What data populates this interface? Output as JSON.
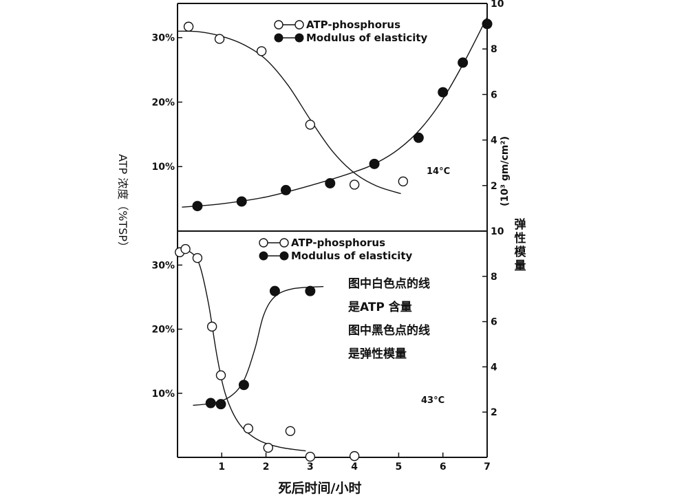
{
  "chart_data": [
    {
      "type": "scatter",
      "panel": "top",
      "temperature_label": "14°C",
      "x_ticks": [],
      "xlim": [
        0,
        7
      ],
      "y_left": {
        "ticks": [
          "10%",
          "20%",
          "30%"
        ],
        "tick_values": [
          10,
          20,
          30
        ],
        "lim": [
          0,
          35.3
        ]
      },
      "y_right": {
        "ticks": [
          "2",
          "4",
          "6",
          "8",
          "10"
        ],
        "tick_values": [
          2,
          4,
          6,
          8,
          10
        ],
        "lim": [
          0,
          10
        ],
        "label": "(10³ gm/cm²)"
      },
      "legend": [
        "ATP-phosphorus",
        "Modulus of elasticity"
      ],
      "series": [
        {
          "name": "ATP-phosphorus",
          "marker": "open-circle",
          "axis": "left",
          "points": [
            [
              0.25,
              31.7
            ],
            [
              0.95,
              29.8
            ],
            [
              1.9,
              27.9
            ],
            [
              3.0,
              16.5
            ],
            [
              4.0,
              7.2
            ],
            [
              5.1,
              7.7
            ]
          ],
          "curve": [
            [
              0,
              31.0
            ],
            [
              0.5,
              30.9
            ],
            [
              1.0,
              30.2
            ],
            [
              1.5,
              28.9
            ],
            [
              2.0,
              26.6
            ],
            [
              2.5,
              22.6
            ],
            [
              3.0,
              17.3
            ],
            [
              3.5,
              12.4
            ],
            [
              4.0,
              9.0
            ],
            [
              4.5,
              7.0
            ],
            [
              5.05,
              5.8
            ]
          ]
        },
        {
          "name": "Modulus of elasticity",
          "marker": "filled-circle",
          "axis": "right",
          "points": [
            [
              0.45,
              1.1
            ],
            [
              1.45,
              1.3
            ],
            [
              2.45,
              1.8
            ],
            [
              3.45,
              2.1
            ],
            [
              4.45,
              2.95
            ],
            [
              5.45,
              4.1
            ],
            [
              6.0,
              6.1
            ],
            [
              6.45,
              7.4
            ],
            [
              7.0,
              9.1
            ]
          ],
          "curve": [
            [
              0.1,
              1.05
            ],
            [
              1.0,
              1.2
            ],
            [
              2.0,
              1.5
            ],
            [
              3.0,
              2.0
            ],
            [
              4.0,
              2.6
            ],
            [
              4.5,
              3.0
            ],
            [
              5.0,
              3.6
            ],
            [
              5.5,
              4.5
            ],
            [
              6.0,
              5.8
            ],
            [
              6.5,
              7.5
            ],
            [
              7.0,
              9.4
            ]
          ]
        }
      ]
    },
    {
      "type": "scatter",
      "panel": "bottom",
      "temperature_label": "43°C",
      "x_ticks": [
        "1",
        "2",
        "3",
        "4",
        "5",
        "6",
        "7"
      ],
      "x_tick_values": [
        1,
        2,
        3,
        4,
        5,
        6,
        7
      ],
      "xlim": [
        0,
        7
      ],
      "xlabel": "死后时间/小时",
      "y_left": {
        "ticks": [
          "10%",
          "20%",
          "30%"
        ],
        "tick_values": [
          10,
          20,
          30
        ],
        "lim": [
          0,
          35.3
        ]
      },
      "y_right": {
        "ticks": [
          "2",
          "4",
          "6",
          "8",
          "10"
        ],
        "tick_values": [
          2,
          4,
          6,
          8,
          10
        ],
        "lim": [
          0,
          10
        ]
      },
      "legend": [
        "ATP-phosphorus",
        "Modulus of elasticity"
      ],
      "series": [
        {
          "name": "ATP-phosphorus",
          "marker": "open-circle",
          "axis": "left",
          "points": [
            [
              0.05,
              32.0
            ],
            [
              0.18,
              32.5
            ],
            [
              0.45,
              31.1
            ],
            [
              0.78,
              20.4
            ],
            [
              0.98,
              12.8
            ],
            [
              1.6,
              4.5
            ],
            [
              2.05,
              1.5
            ],
            [
              2.55,
              4.1
            ],
            [
              3.0,
              0.1
            ],
            [
              4.0,
              0.2
            ]
          ],
          "curve": [
            [
              0.05,
              32.3
            ],
            [
              0.3,
              32.0
            ],
            [
              0.5,
              30.0
            ],
            [
              0.7,
              24.0
            ],
            [
              0.9,
              15.5
            ],
            [
              1.1,
              9.5
            ],
            [
              1.4,
              5.2
            ],
            [
              1.8,
              2.8
            ],
            [
              2.3,
              1.6
            ],
            [
              2.9,
              1.0
            ]
          ]
        },
        {
          "name": "Modulus of elasticity",
          "marker": "filled-circle",
          "axis": "right",
          "points": [
            [
              0.75,
              2.4
            ],
            [
              0.98,
              2.35
            ],
            [
              1.5,
              3.2
            ],
            [
              2.2,
              7.35
            ],
            [
              3.0,
              7.35
            ]
          ],
          "curve": [
            [
              0.35,
              2.3
            ],
            [
              0.8,
              2.4
            ],
            [
              1.2,
              2.7
            ],
            [
              1.5,
              3.4
            ],
            [
              1.75,
              4.8
            ],
            [
              1.95,
              6.3
            ],
            [
              2.2,
              7.1
            ],
            [
              2.6,
              7.45
            ],
            [
              3.3,
              7.55
            ]
          ]
        }
      ]
    }
  ],
  "labels": {
    "y_left": "ATP 浓度（%TSP）",
    "y_right_title": "弹性模量",
    "note_lines": [
      "图中白色点的线",
      "是ATP 含量",
      "图中黑色点的线",
      "是弹性模量"
    ]
  }
}
